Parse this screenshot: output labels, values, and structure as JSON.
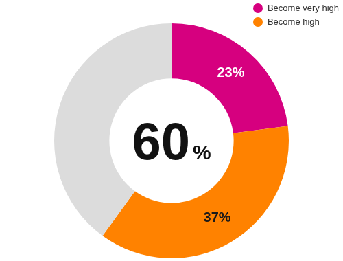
{
  "chart_data": {
    "type": "doughnut",
    "categories": [
      "Become very high",
      "Become high",
      null
    ],
    "values": [
      23,
      37,
      40
    ],
    "value_labels": [
      "23%",
      "37%",
      null
    ],
    "colors": [
      "#d6007f",
      "#ff8200",
      "#dcdcdc"
    ],
    "data_labels": true,
    "legend": "top-right",
    "annotation": "60%"
  }
}
